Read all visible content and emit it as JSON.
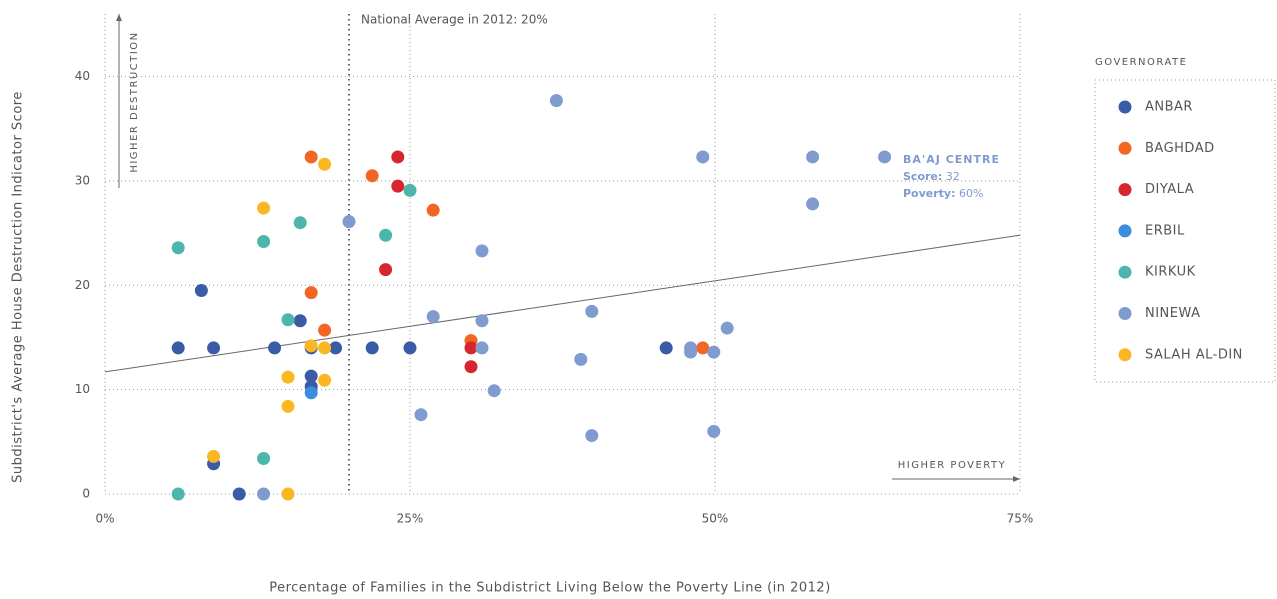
{
  "chart_data": {
    "type": "scatter",
    "x_label": "Percentage of Families in the Subdistrict Living Below the Poverty Line (in 2012)",
    "y_label": "Subdistrict's Average House Destruction Indicator Score",
    "xlim": [
      0,
      75
    ],
    "ylim": [
      0,
      46
    ],
    "xticks": [
      {
        "value": 0,
        "label": "0%"
      },
      {
        "value": 25,
        "label": "25%"
      },
      {
        "value": 50,
        "label": "50%"
      },
      {
        "value": 75,
        "label": "75%"
      }
    ],
    "yticks": [
      0,
      10,
      20,
      30,
      40
    ],
    "grid": true,
    "reference_line": {
      "x": 20,
      "label": "National Average in 2012: 20%"
    },
    "trendline": {
      "x": [
        0,
        75
      ],
      "values": [
        11.7,
        24.8
      ],
      "color": "#666666"
    },
    "y_arrow_label": "HIGHER DESTRUCTION",
    "x_arrow_label": "HIGHER POVERTY",
    "callout": {
      "name": "BA'AJ CENTRE",
      "score_label": "Score:",
      "score": 32,
      "poverty_label": "Poverty:",
      "poverty": "60%"
    },
    "legend_title": "GOVERNORATE",
    "legend": "right",
    "series": [
      {
        "name": "ANBAR",
        "color": "#3a5ba6",
        "x": [
          6.0,
          7.9,
          8.9,
          8.9,
          11.0,
          13.9,
          16.0,
          16.9,
          16.9,
          16.9,
          18.9,
          21.9,
          25.0,
          46.0
        ],
        "values": [
          14,
          19.5,
          14,
          2.9,
          0,
          14,
          16.6,
          14,
          11.3,
          10.3,
          14,
          14,
          14,
          14
        ]
      },
      {
        "name": "BAGHDAD",
        "color": "#f26522",
        "x": [
          16.9,
          16.9,
          18.0,
          21.9,
          26.9,
          30.0,
          49.0
        ],
        "values": [
          32.3,
          19.3,
          15.7,
          30.5,
          27.2,
          14.7,
          14
        ]
      },
      {
        "name": "DIYALA",
        "color": "#d7262e",
        "x": [
          24.0,
          24.0,
          23.0,
          30.0,
          30.0
        ],
        "values": [
          32.3,
          29.5,
          21.5,
          14,
          12.2
        ]
      },
      {
        "name": "ERBIL",
        "color": "#3b8de0",
        "x": [
          16.9
        ],
        "values": [
          9.7
        ]
      },
      {
        "name": "KIRKUK",
        "color": "#4db6ac",
        "x": [
          6.0,
          6.0,
          13.0,
          13.0,
          15.0,
          16.0,
          23.0,
          25.0
        ],
        "values": [
          23.6,
          0,
          24.2,
          3.4,
          16.7,
          26.0,
          24.8,
          29.1
        ]
      },
      {
        "name": "NINEWA",
        "color": "#7f9bd0",
        "x": [
          13.0,
          20.0,
          25.9,
          26.9,
          30.9,
          30.9,
          30.9,
          31.9,
          37.0,
          39.0,
          39.9,
          39.9,
          48.0,
          48.0,
          49.0,
          49.9,
          49.9,
          51.0,
          58.0,
          58.0,
          63.9
        ],
        "values": [
          0,
          26.1,
          7.6,
          17.0,
          23.3,
          16.6,
          14,
          9.9,
          37.7,
          12.9,
          17.5,
          5.6,
          14,
          13.6,
          32.3,
          13.6,
          6.0,
          15.9,
          32.3,
          27.8,
          32.3
        ]
      },
      {
        "name": "SALAH AL-DIN",
        "color": "#fbb623",
        "x": [
          8.9,
          13.0,
          15.0,
          15.0,
          15.0,
          16.9,
          18.0,
          18.0,
          18.0
        ],
        "values": [
          3.6,
          27.4,
          11.2,
          8.4,
          0,
          14.2,
          31.6,
          14,
          10.9
        ]
      }
    ]
  }
}
